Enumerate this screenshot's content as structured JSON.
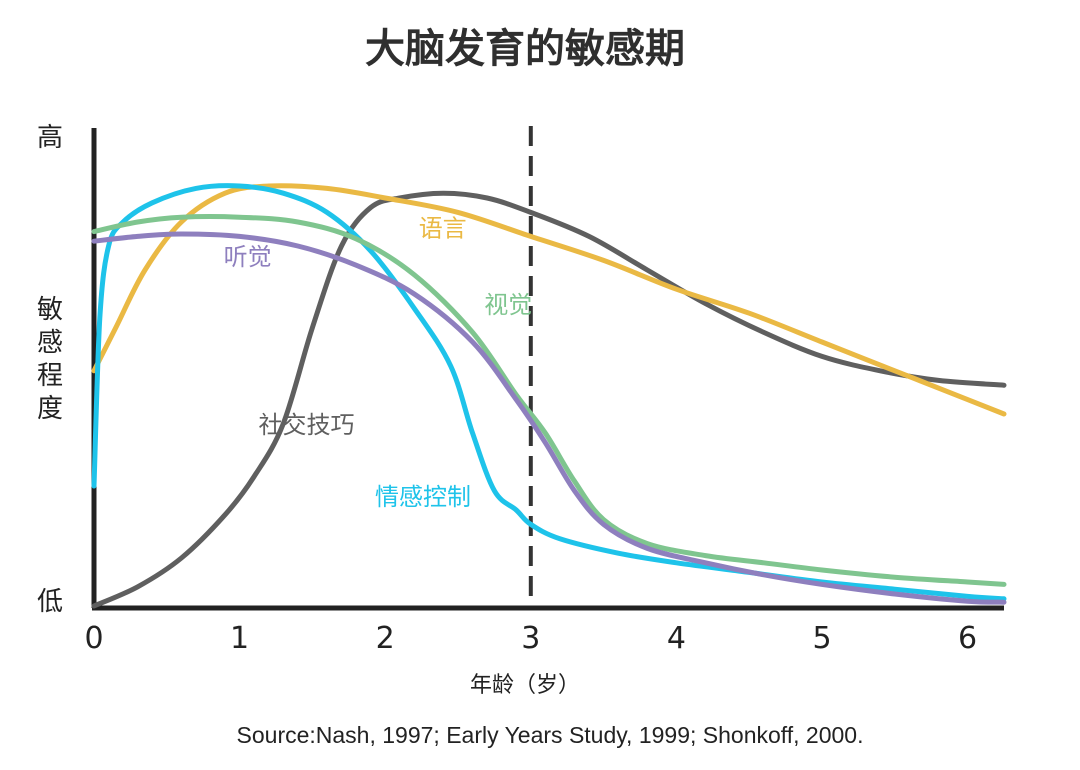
{
  "chart_data": {
    "type": "line",
    "title": "大脑发育的敏感期",
    "xlabel": "年龄（岁）",
    "ylabel": "敏感程度",
    "y_tick_high": "高",
    "y_tick_low": "低",
    "xlim": [
      0,
      6.25
    ],
    "ylim": [
      0,
      100
    ],
    "x_ticks": [
      0,
      1,
      2,
      3,
      4,
      5,
      6
    ],
    "reference_line_x": 3,
    "source": "Source:Nash, 1997; Early Years Study, 1999; Shonkoff, 2000.",
    "series": [
      {
        "name": "社交技巧",
        "color": "#5f5f5f",
        "x": [
          0,
          0.3,
          0.6,
          0.9,
          1.1,
          1.3,
          1.5,
          1.7,
          1.9,
          2.1,
          2.4,
          2.7,
          3.0,
          3.4,
          3.8,
          4.2,
          4.6,
          5.0,
          5.4,
          5.8,
          6.25
        ],
        "y": [
          0,
          4,
          10,
          19,
          27,
          38,
          58,
          75,
          83,
          85,
          86,
          85,
          82,
          77,
          70,
          63,
          57,
          52,
          49,
          47,
          46
        ]
      },
      {
        "name": "语言",
        "color": "#eab944",
        "x": [
          0,
          0.15,
          0.35,
          0.6,
          0.9,
          1.2,
          1.6,
          2.0,
          2.5,
          3.0,
          3.5,
          4.0,
          4.5,
          5.0,
          5.5,
          6.0,
          6.25
        ],
        "y": [
          49,
          58,
          70,
          80,
          86,
          87.5,
          87,
          85,
          82,
          77,
          72,
          66,
          61,
          55,
          49,
          43,
          40
        ]
      },
      {
        "name": "情感控制",
        "color": "#1ec3ea",
        "x": [
          0,
          0.04,
          0.1,
          0.2,
          0.4,
          0.7,
          1.0,
          1.3,
          1.6,
          1.9,
          2.2,
          2.45,
          2.6,
          2.75,
          2.9,
          3.0,
          3.2,
          3.6,
          4.0,
          4.5,
          5.0,
          5.5,
          6.0,
          6.25
        ],
        "y": [
          25,
          60,
          75,
          80,
          84,
          87,
          87.5,
          86,
          82,
          74,
          62,
          50,
          36,
          24,
          20,
          17,
          14,
          11,
          9,
          7,
          5,
          3.5,
          2,
          1.5
        ]
      },
      {
        "name": "视觉",
        "color": "#7fc58f",
        "x": [
          0,
          0.3,
          0.6,
          1.0,
          1.4,
          1.8,
          2.2,
          2.6,
          2.9,
          3.1,
          3.3,
          3.5,
          3.8,
          4.2,
          4.6,
          5.0,
          5.5,
          6.0,
          6.25
        ],
        "y": [
          78,
          80,
          81,
          81,
          80,
          76.5,
          69,
          57,
          44,
          36,
          26,
          18,
          13,
          10.5,
          9,
          7.5,
          6,
          5,
          4.5
        ]
      },
      {
        "name": "听觉",
        "color": "#8e7fbe",
        "x": [
          0,
          0.3,
          0.6,
          1.0,
          1.4,
          1.8,
          2.2,
          2.6,
          2.9,
          3.1,
          3.3,
          3.5,
          3.8,
          4.2,
          4.6,
          5.0,
          5.5,
          6.0,
          6.25
        ],
        "y": [
          76,
          77,
          77.5,
          77,
          75,
          71,
          65,
          55,
          43,
          34,
          24,
          17,
          12,
          9,
          6.5,
          4.5,
          2.5,
          1,
          0.8
        ]
      }
    ],
    "series_labels": [
      {
        "name": "语言",
        "color": "#eab944",
        "at_x": 2.23,
        "at_y": 77
      },
      {
        "name": "听觉",
        "color": "#8e7fbe",
        "at_x": 0.89,
        "at_y": 71
      },
      {
        "name": "视觉",
        "color": "#7fc58f",
        "at_x": 2.68,
        "at_y": 61
      },
      {
        "name": "社交技巧",
        "color": "#5f5f5f",
        "at_x": 1.13,
        "at_y": 36
      },
      {
        "name": "情感控制",
        "color": "#1ec3ea",
        "at_x": 1.93,
        "at_y": 21
      }
    ]
  }
}
